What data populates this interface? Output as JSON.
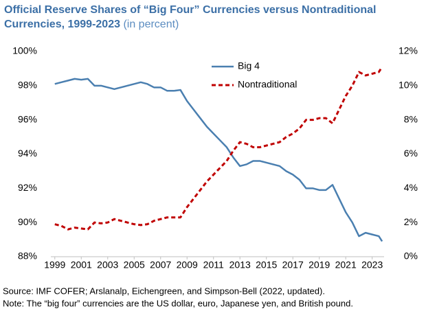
{
  "chart_data": {
    "type": "line",
    "title": "Official Reserve Shares of “Big Four” Currencies versus Nontraditional Currencies, 1999-2023",
    "subtitle": "(in percent)",
    "notes": [
      "Source: IMF COFER; Arslanalp, Eichengreen, and Simpson-Bell (2022, updated).",
      "Note: The “big four” currencies are the US dollar, euro, Japanese yen, and British pound."
    ],
    "x": [
      1999,
      1999.5,
      2000,
      2000.5,
      2001,
      2001.5,
      2002,
      2002.5,
      2003,
      2003.5,
      2004,
      2004.5,
      2005,
      2005.5,
      2006,
      2006.5,
      2007,
      2007.5,
      2008,
      2008.5,
      2009,
      2009.5,
      2010,
      2010.5,
      2011,
      2011.5,
      2012,
      2012.5,
      2013,
      2013.5,
      2014,
      2014.5,
      2015,
      2015.5,
      2016,
      2016.5,
      2017,
      2017.5,
      2018,
      2018.5,
      2019,
      2019.5,
      2020,
      2020.5,
      2021,
      2021.5,
      2022,
      2022.5,
      2023,
      2023.5,
      2023.75
    ],
    "xlim": [
      1998.7,
      2023.9
    ],
    "xticks": [
      1999,
      2001,
      2003,
      2005,
      2007,
      2009,
      2011,
      2013,
      2015,
      2017,
      2019,
      2021,
      2023
    ],
    "ylim": [
      88,
      100
    ],
    "yticks": [
      {
        "value": 88,
        "label": "88%"
      },
      {
        "value": 90,
        "label": "90%"
      },
      {
        "value": 92,
        "label": "92%"
      },
      {
        "value": 94,
        "label": "94%"
      },
      {
        "value": 96,
        "label": "96%"
      },
      {
        "value": 98,
        "label": "98%"
      },
      {
        "value": 100,
        "label": "100%"
      }
    ],
    "y2lim": [
      0,
      12
    ],
    "y2ticks": [
      {
        "value": 0,
        "label": "0%"
      },
      {
        "value": 2,
        "label": "2%"
      },
      {
        "value": 4,
        "label": "4%"
      },
      {
        "value": 6,
        "label": "6%"
      },
      {
        "value": 8,
        "label": "8%"
      },
      {
        "value": 10,
        "label": "10%"
      },
      {
        "value": 12,
        "label": "12%"
      }
    ],
    "series": [
      {
        "name": "Big 4",
        "color": "#4a7fb0",
        "dash": false,
        "values": [
          98.1,
          98.2,
          98.3,
          98.4,
          98.35,
          98.4,
          98.0,
          98.0,
          97.9,
          97.8,
          97.9,
          98.0,
          98.1,
          98.2,
          98.1,
          97.9,
          97.9,
          97.7,
          97.7,
          97.75,
          97.1,
          96.6,
          96.1,
          95.6,
          95.2,
          94.8,
          94.4,
          93.8,
          93.3,
          93.4,
          93.6,
          93.6,
          93.5,
          93.4,
          93.3,
          93.0,
          92.8,
          92.5,
          92.0,
          92.0,
          91.9,
          91.9,
          92.2,
          91.4,
          90.6,
          90.0,
          89.2,
          89.4,
          89.3,
          89.2,
          88.9
        ]
      },
      {
        "name": "Nontraditional",
        "color": "#c00000",
        "dash": true,
        "axis": "y2",
        "values": [
          1.9,
          1.8,
          1.6,
          1.7,
          1.65,
          1.6,
          2.0,
          1.95,
          2.0,
          2.2,
          2.1,
          2.0,
          1.9,
          1.85,
          1.9,
          2.1,
          2.2,
          2.3,
          2.3,
          2.3,
          2.9,
          3.4,
          3.9,
          4.4,
          4.8,
          5.2,
          5.6,
          6.2,
          6.7,
          6.6,
          6.4,
          6.4,
          6.5,
          6.6,
          6.7,
          7.0,
          7.2,
          7.5,
          8.0,
          8.0,
          8.1,
          8.1,
          7.8,
          8.6,
          9.4,
          10.0,
          10.8,
          10.6,
          10.7,
          10.8,
          11.1
        ]
      }
    ]
  }
}
